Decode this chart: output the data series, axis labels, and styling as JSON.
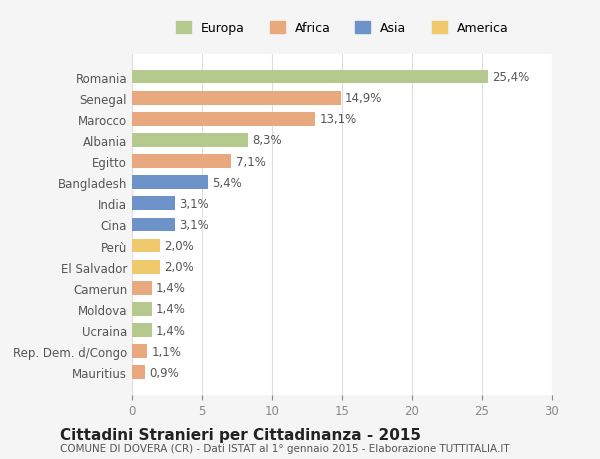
{
  "countries": [
    "Romania",
    "Senegal",
    "Marocco",
    "Albania",
    "Egitto",
    "Bangladesh",
    "India",
    "Cina",
    "Perù",
    "El Salvador",
    "Camerun",
    "Moldova",
    "Ucraina",
    "Rep. Dem. d/Congo",
    "Mauritius"
  ],
  "values": [
    25.4,
    14.9,
    13.1,
    8.3,
    7.1,
    5.4,
    3.1,
    3.1,
    2.0,
    2.0,
    1.4,
    1.4,
    1.4,
    1.1,
    0.9
  ],
  "continents": [
    "Europa",
    "Africa",
    "Africa",
    "Europa",
    "Africa",
    "Asia",
    "Asia",
    "Asia",
    "America",
    "America",
    "Africa",
    "Europa",
    "Europa",
    "Africa",
    "Africa"
  ],
  "colors": {
    "Europa": "#b5c98e",
    "Africa": "#e8a97e",
    "Asia": "#6e93c8",
    "America": "#f0c96e"
  },
  "legend_order": [
    "Europa",
    "Africa",
    "Asia",
    "America"
  ],
  "title": "Cittadini Stranieri per Cittadinanza - 2015",
  "subtitle": "COMUNE DI DOVERA (CR) - Dati ISTAT al 1° gennaio 2015 - Elaborazione TUTTITALIA.IT",
  "xlim": [
    0,
    30
  ],
  "xticks": [
    0,
    5,
    10,
    15,
    20,
    25,
    30
  ],
  "background_color": "#f5f5f5",
  "bar_background": "#ffffff",
  "grid_color": "#dddddd",
  "label_fontsize": 8.5,
  "value_fontsize": 8.5,
  "title_fontsize": 11,
  "subtitle_fontsize": 7.5,
  "legend_fontsize": 9
}
